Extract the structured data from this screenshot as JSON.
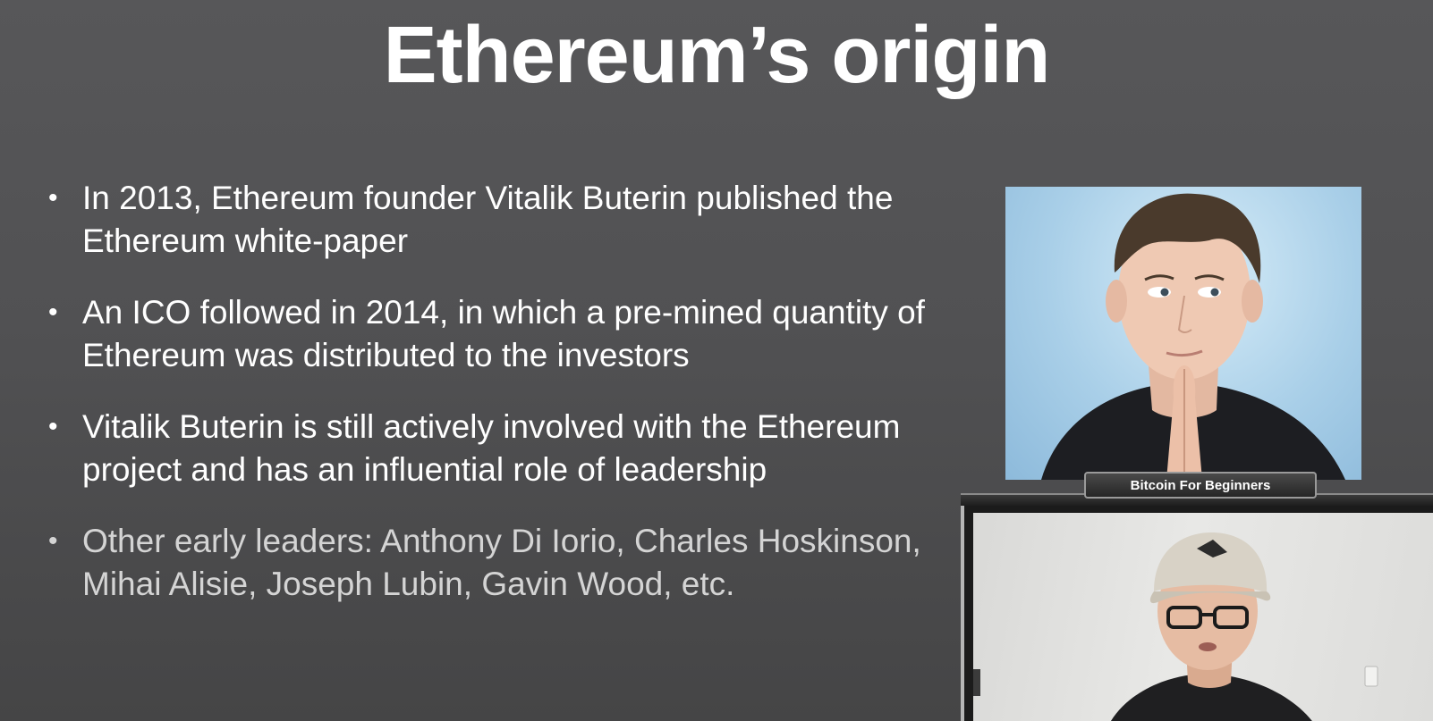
{
  "slide": {
    "title": "Ethereum’s origin",
    "bullets": [
      {
        "text": "In 2013, Ethereum founder Vitalik Buterin published the Ethereum white-paper"
      },
      {
        "text": "An ICO followed in 2014, in which a pre-mined quantity of Ethereum was distributed to the investors"
      },
      {
        "text": "Vitalik Buterin is still actively involved with the Ethereum project and has an influential role of leadership"
      },
      {
        "text": "Other early leaders: Anthony Di Iorio, Charles Hoskinson, Mihai Alisie, Joseph Lubin, Gavin Wood, etc."
      }
    ],
    "bullet_glyph": "•"
  },
  "webcam": {
    "label": "Bitcoin For Beginners"
  },
  "colors": {
    "background": "#525254",
    "title_text": "#ffffff",
    "bullet_text": "#ffffff",
    "bullet_text_dim": "#d4d4d4",
    "portrait_sky": "#a9cfe8"
  }
}
